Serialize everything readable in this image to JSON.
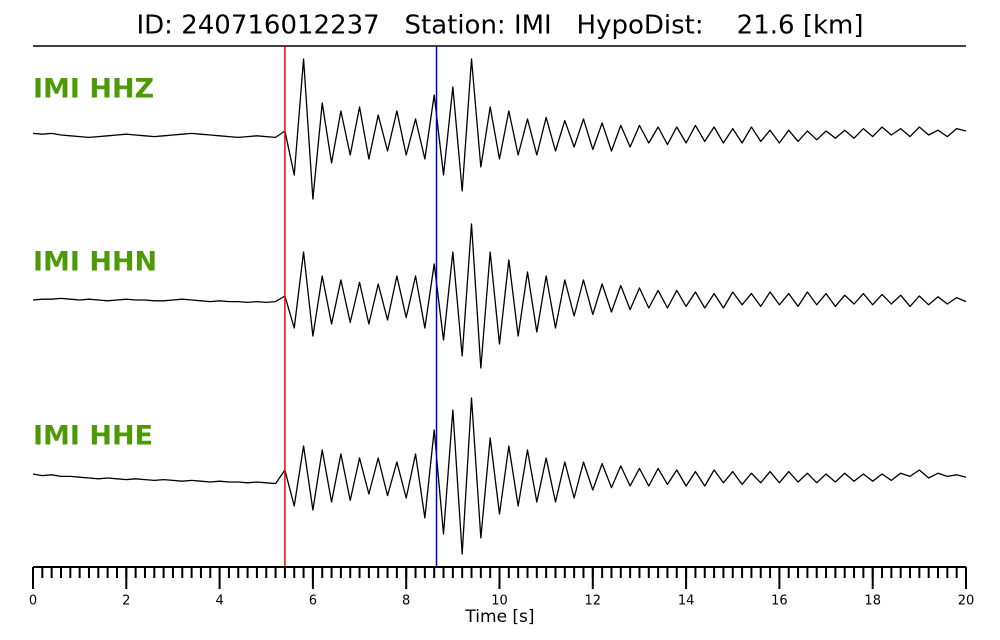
{
  "chart_data": {
    "type": "seismogram",
    "title": "ID: 240716012237   Station: IMI   HypoDist:    21.6 [km]",
    "xlabel": "Time [s]",
    "xlim": [
      0,
      20
    ],
    "xticks": [
      0,
      2,
      4,
      6,
      8,
      10,
      12,
      14,
      16,
      18,
      20
    ],
    "xminor_step": 0.2,
    "ylim": [
      -1,
      1
    ],
    "label_color": "#4e9a06",
    "markers": [
      {
        "x": 5.4,
        "color": "#ff0000"
      },
      {
        "x": 8.65,
        "color": "#0000cc"
      }
    ],
    "x": [
      0,
      0.2,
      0.4,
      0.6,
      0.8,
      1,
      1.2,
      1.4,
      1.6,
      1.8,
      2,
      2.2,
      2.4,
      2.6,
      2.8,
      3,
      3.2,
      3.4,
      3.6,
      3.8,
      4,
      4.2,
      4.4,
      4.6,
      4.8,
      5,
      5.2,
      5.4,
      5.6,
      5.8,
      6,
      6.2,
      6.4,
      6.6,
      6.8,
      7,
      7.2,
      7.4,
      7.6,
      7.8,
      8,
      8.2,
      8.4,
      8.6,
      8.8,
      9,
      9.2,
      9.4,
      9.6,
      9.8,
      10,
      10.2,
      10.4,
      10.6,
      10.8,
      11,
      11.2,
      11.4,
      11.6,
      11.8,
      12,
      12.2,
      12.4,
      12.6,
      12.8,
      13,
      13.2,
      13.4,
      13.6,
      13.8,
      14,
      14.2,
      14.4,
      14.6,
      14.8,
      15,
      15.2,
      15.4,
      15.6,
      15.8,
      16,
      16.2,
      16.4,
      16.6,
      16.8,
      17,
      17.2,
      17.4,
      17.6,
      17.8,
      18,
      18.2,
      18.4,
      18.6,
      18.8,
      19,
      19.2,
      19.4,
      19.6,
      19.8,
      20
    ],
    "series": [
      {
        "name": "IMI HHZ",
        "color": "#000000",
        "values": [
          0.02,
          0.01,
          0.02,
          0,
          -0.01,
          -0.02,
          -0.03,
          -0.02,
          -0.01,
          0,
          0.01,
          0,
          -0.01,
          -0.02,
          -0.01,
          0,
          0.01,
          0.02,
          0.01,
          0,
          -0.01,
          -0.02,
          -0.03,
          -0.02,
          -0.01,
          -0.02,
          -0.03,
          0.05,
          -0.5,
          0.95,
          -0.8,
          0.4,
          -0.35,
          0.3,
          -0.25,
          0.35,
          -0.3,
          0.25,
          -0.2,
          0.3,
          -0.25,
          0.2,
          -0.3,
          0.5,
          -0.5,
          0.6,
          -0.7,
          0.95,
          -0.4,
          0.35,
          -0.3,
          0.3,
          -0.25,
          0.2,
          -0.25,
          0.22,
          -0.2,
          0.18,
          -0.15,
          0.2,
          -0.18,
          0.15,
          -0.2,
          0.12,
          -0.15,
          0.12,
          -0.1,
          0.1,
          -0.12,
          0.1,
          -0.1,
          0.12,
          -0.08,
          0.1,
          -0.1,
          0.08,
          -0.1,
          0.1,
          -0.08,
          0.06,
          -0.1,
          0.06,
          -0.08,
          0.05,
          -0.06,
          0.05,
          -0.04,
          0.06,
          -0.04,
          0.08,
          -0.02,
          0.1,
          0,
          0.08,
          -0.02,
          0.1,
          0,
          0.06,
          -0.02,
          0.08,
          0.05
        ]
      },
      {
        "name": "IMI HHN",
        "color": "#000000",
        "values": [
          0,
          0.01,
          0.01,
          0.02,
          0.01,
          0,
          0.01,
          0,
          -0.01,
          0,
          0.01,
          0,
          0,
          -0.01,
          -0.01,
          0,
          0.01,
          0,
          -0.01,
          -0.02,
          -0.01,
          -0.02,
          -0.02,
          -0.03,
          -0.02,
          -0.03,
          -0.02,
          0.05,
          -0.35,
          0.6,
          -0.45,
          0.3,
          -0.3,
          0.25,
          -0.28,
          0.22,
          -0.3,
          0.2,
          -0.25,
          0.3,
          -0.22,
          0.3,
          -0.35,
          0.45,
          -0.5,
          0.6,
          -0.7,
          0.95,
          -0.85,
          0.6,
          -0.55,
          0.5,
          -0.45,
          0.35,
          -0.4,
          0.3,
          -0.35,
          0.25,
          -0.2,
          0.25,
          -0.18,
          0.2,
          -0.15,
          0.18,
          -0.12,
          0.15,
          -0.1,
          0.12,
          -0.1,
          0.12,
          -0.08,
          0.1,
          -0.1,
          0.08,
          -0.1,
          0.1,
          -0.06,
          0.08,
          -0.08,
          0.1,
          -0.06,
          0.08,
          -0.08,
          0.1,
          -0.06,
          0.08,
          -0.08,
          0.06,
          -0.05,
          0.08,
          -0.06,
          0.07,
          -0.05,
          0.06,
          -0.08,
          0.05,
          -0.06,
          0.04,
          -0.05,
          0.03,
          -0.02
        ]
      },
      {
        "name": "IMI HHE",
        "color": "#000000",
        "values": [
          0.05,
          0.03,
          0.04,
          0.02,
          0.02,
          0.01,
          0,
          -0.01,
          0,
          -0.01,
          -0.02,
          -0.01,
          -0.02,
          -0.03,
          -0.02,
          -0.03,
          -0.04,
          -0.03,
          -0.04,
          -0.05,
          -0.04,
          -0.05,
          -0.05,
          -0.06,
          -0.05,
          -0.06,
          -0.07,
          0.1,
          -0.35,
          0.4,
          -0.4,
          0.35,
          -0.3,
          0.3,
          -0.28,
          0.25,
          -0.2,
          0.25,
          -0.22,
          0.2,
          -0.25,
          0.3,
          -0.5,
          0.6,
          -0.7,
          0.85,
          -0.95,
          1,
          -0.75,
          0.5,
          -0.45,
          0.4,
          -0.35,
          0.35,
          -0.3,
          0.25,
          -0.3,
          0.2,
          -0.25,
          0.2,
          -0.15,
          0.18,
          -0.12,
          0.15,
          -0.1,
          0.12,
          -0.1,
          0.12,
          -0.08,
          0.1,
          -0.1,
          0.08,
          -0.1,
          0.1,
          -0.06,
          0.08,
          -0.08,
          0.06,
          -0.06,
          0.08,
          -0.06,
          0.08,
          -0.05,
          0.06,
          -0.06,
          0.05,
          -0.05,
          0.06,
          -0.04,
          0.05,
          -0.04,
          0.05,
          -0.03,
          0.06,
          0.02,
          0.1,
          0,
          0.06,
          0.02,
          0.04,
          0.01
        ]
      }
    ]
  }
}
